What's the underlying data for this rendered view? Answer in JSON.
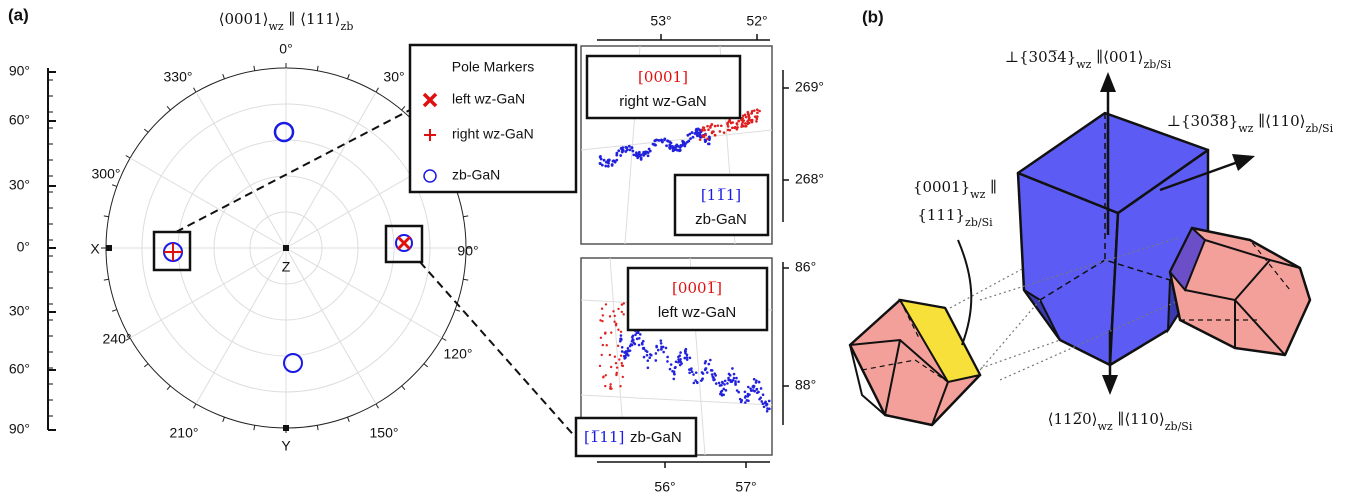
{
  "panel_a": {
    "label": "(a)",
    "title": [
      "⟨0001⟩",
      "wz",
      " ∥ ⟨111⟩",
      "zb"
    ],
    "left_scale": [
      "90°",
      "60°",
      "30°",
      "0°",
      "30°",
      "60°",
      "90°"
    ],
    "angles": [
      "0°",
      "30°",
      "330°",
      "300°",
      "90°",
      "240°",
      "120°",
      "210°",
      "150°"
    ],
    "axis_labels": {
      "x": "X",
      "y": "Y",
      "z": "Z"
    },
    "legend": {
      "title": "Pole Markers",
      "items": [
        "left wz-GaN",
        "right wz-GaN",
        "zb-GaN"
      ]
    },
    "inset_top": {
      "top_ticks": [
        "53°",
        "52°"
      ],
      "right_ticks": [
        "269°",
        "268°"
      ],
      "box1": {
        "dir": "[0001]",
        "label": "right wz-GaN"
      },
      "box2": {
        "dir": "[11̅1]",
        "label": "zb-GaN"
      }
    },
    "inset_bottom": {
      "bottom_ticks": [
        "56°",
        "57°"
      ],
      "right_ticks": [
        "86°",
        "88°"
      ],
      "box1": {
        "dir": "[0001̅]",
        "label": "left wz-GaN"
      },
      "box2": {
        "dir": "[1̅11]",
        "label": "zb-GaN"
      }
    }
  },
  "panel_b": {
    "label": "(b)",
    "top_label": [
      "⊥{303̅4}",
      "wz",
      " ∥⟨001⟩",
      "zb/Si"
    ],
    "right_label": [
      "⊥{303̅8}",
      "wz",
      " ∥⟨110⟩",
      "zb/Si"
    ],
    "left_label_1": [
      "{0001}",
      "wz",
      " ∥"
    ],
    "left_label_2": [
      "{111}",
      "zb/Si"
    ],
    "bottom_label": [
      "⟨112̅0⟩",
      "wz",
      " ∥⟨110⟩",
      "zb/Si"
    ]
  }
}
